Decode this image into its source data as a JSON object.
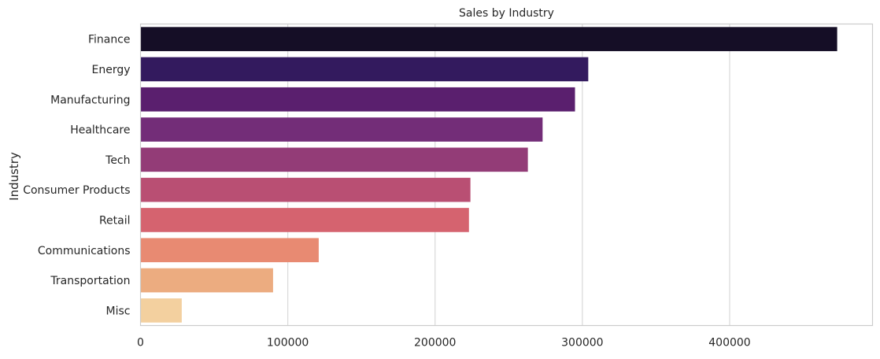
{
  "chart_data": {
    "type": "bar",
    "orientation": "horizontal",
    "title": "Sales by Industry",
    "xlabel": "",
    "ylabel": "Industry",
    "categories": [
      "Finance",
      "Energy",
      "Manufacturing",
      "Healthcare",
      "Tech",
      "Consumer Products",
      "Retail",
      "Communications",
      "Transportation",
      "Misc"
    ],
    "values": [
      473000,
      304000,
      295000,
      273000,
      263000,
      224000,
      223000,
      121000,
      90000,
      28000
    ],
    "colors": [
      "#150e26",
      "#331a5e",
      "#5a1f6e",
      "#732d78",
      "#933c77",
      "#b94f73",
      "#d5636f",
      "#e88a72",
      "#ecac80",
      "#f3d09f"
    ],
    "xlim": [
      0,
      497000
    ],
    "x_ticks": [
      0,
      100000,
      200000,
      300000,
      400000
    ],
    "x_tick_labels": [
      "0",
      "100000",
      "200000",
      "300000",
      "400000"
    ],
    "grid": "vertical",
    "legend": "none"
  }
}
